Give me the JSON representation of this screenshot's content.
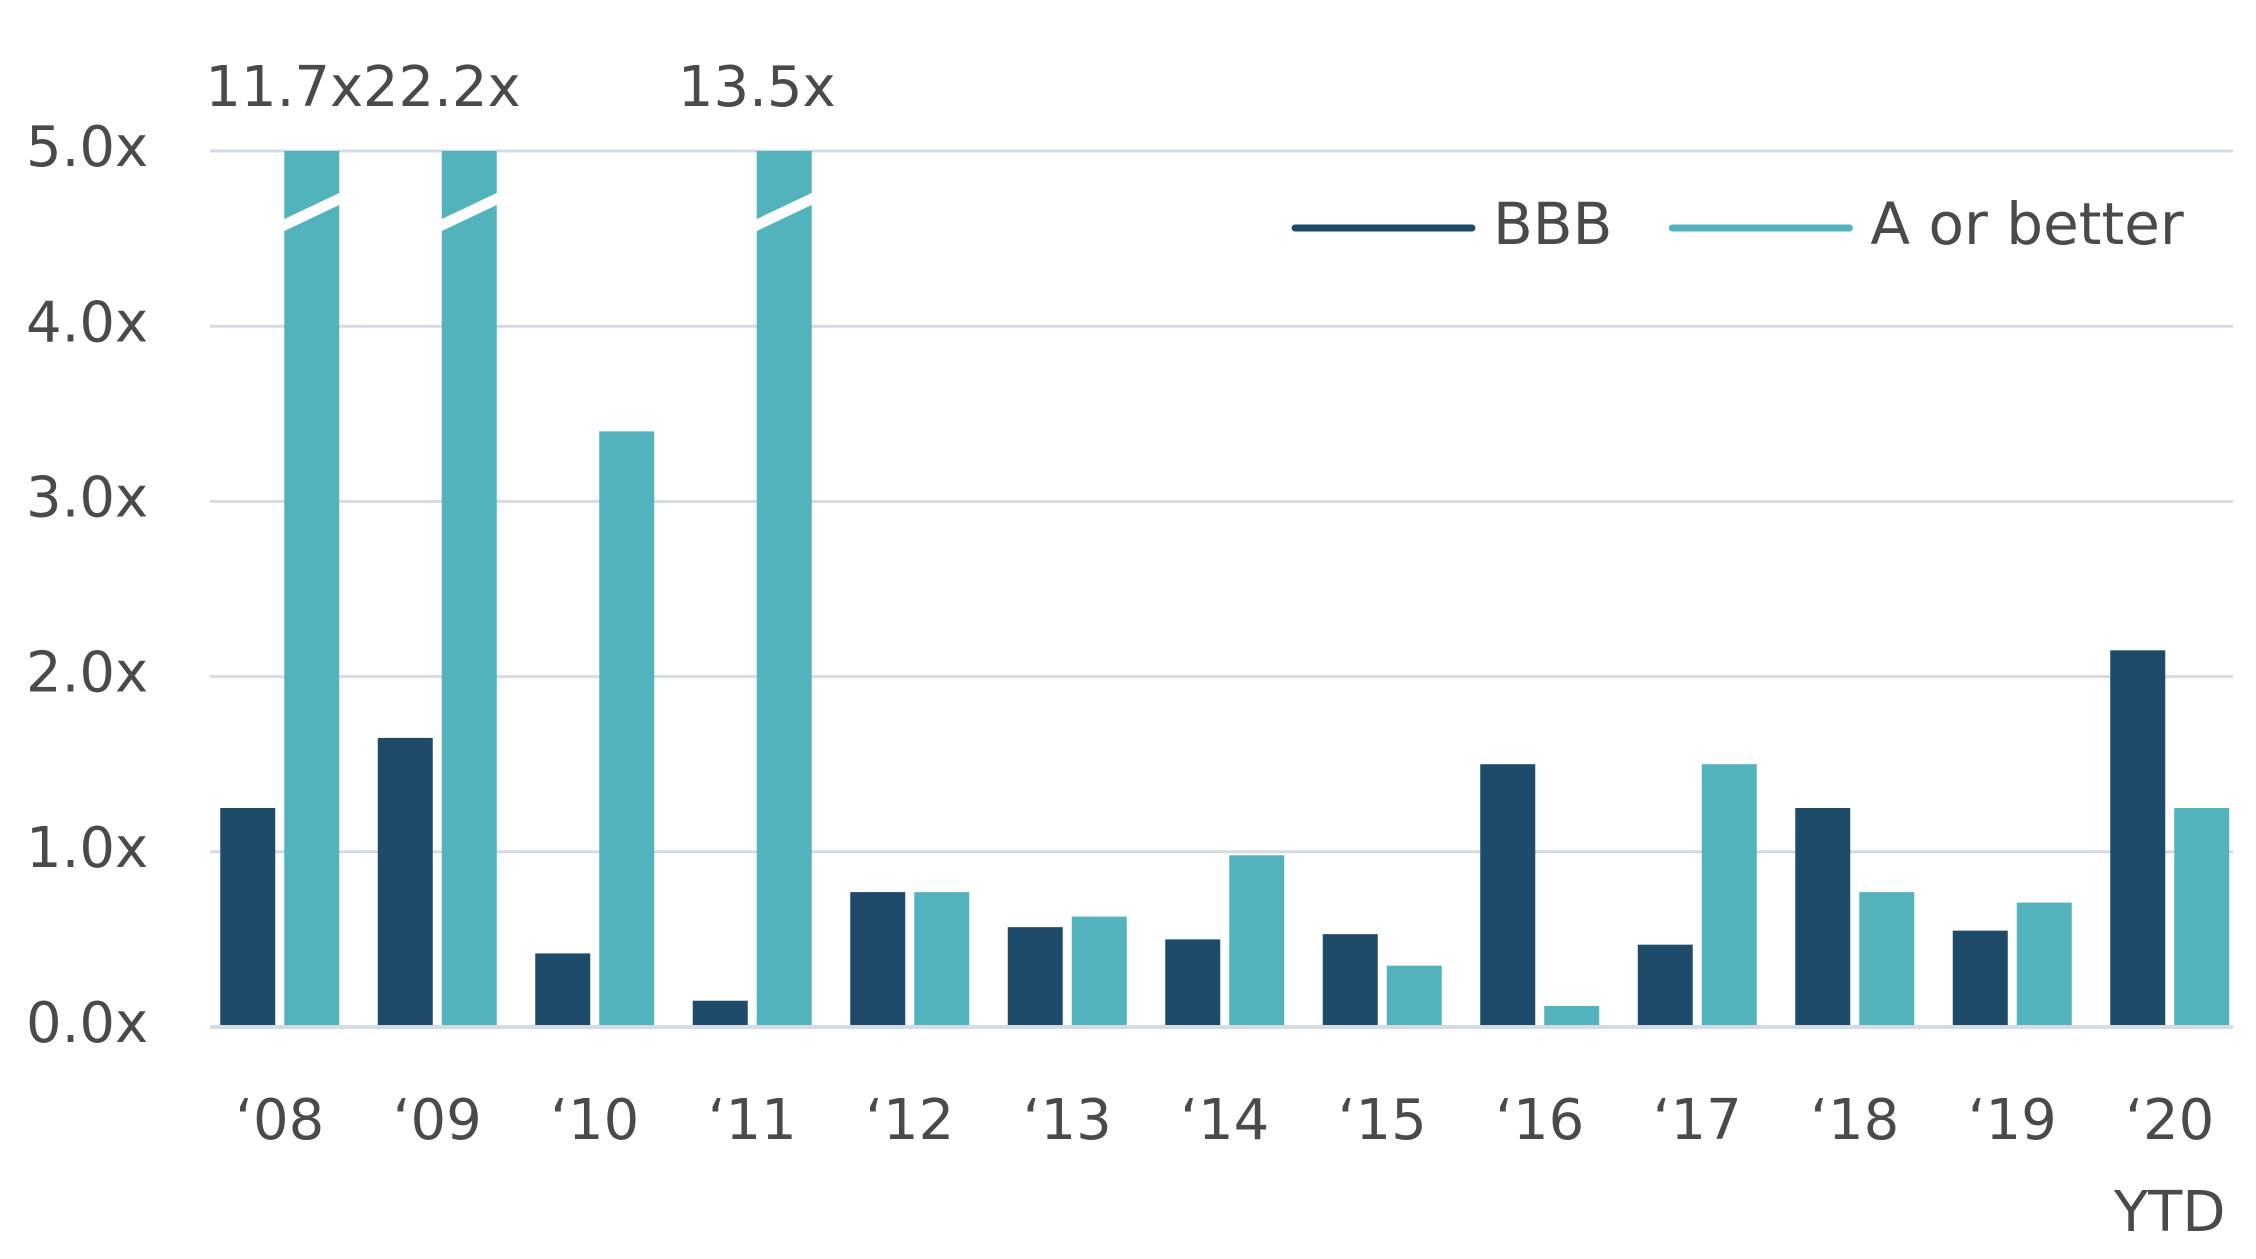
{
  "chart_data": {
    "type": "bar",
    "categories": [
      "‘08",
      "‘09",
      "‘10",
      "‘11",
      "‘12",
      "‘13",
      "‘14",
      "‘15",
      "‘16",
      "‘17",
      "‘18",
      "‘19",
      "‘20 YTD"
    ],
    "series": [
      {
        "name": "BBB",
        "color": "#1f4b6a",
        "values": [
          1.25,
          1.65,
          0.42,
          0.15,
          0.77,
          0.57,
          0.5,
          0.53,
          1.5,
          0.47,
          1.25,
          0.55,
          2.15
        ]
      },
      {
        "name": "A or better",
        "color": "#52b3bd",
        "values": [
          11.7,
          22.2,
          3.4,
          13.5,
          0.77,
          0.63,
          0.98,
          0.35,
          0.12,
          1.5,
          0.77,
          0.71,
          1.25
        ],
        "value_labels": [
          "11.7x",
          "22.2x",
          null,
          "13.5x",
          null,
          null,
          null,
          null,
          null,
          null,
          null,
          null,
          null
        ]
      }
    ],
    "ylim": [
      0,
      5
    ],
    "yticks": [
      {
        "value": 0,
        "label": "0.0x"
      },
      {
        "value": 1,
        "label": "1.0x"
      },
      {
        "value": 2,
        "label": "2.0x"
      },
      {
        "value": 3,
        "label": "3.0x"
      },
      {
        "value": 4,
        "label": "4.0x"
      },
      {
        "value": 5,
        "label": "5.0x"
      }
    ],
    "grid": true,
    "legend": "upper right"
  }
}
